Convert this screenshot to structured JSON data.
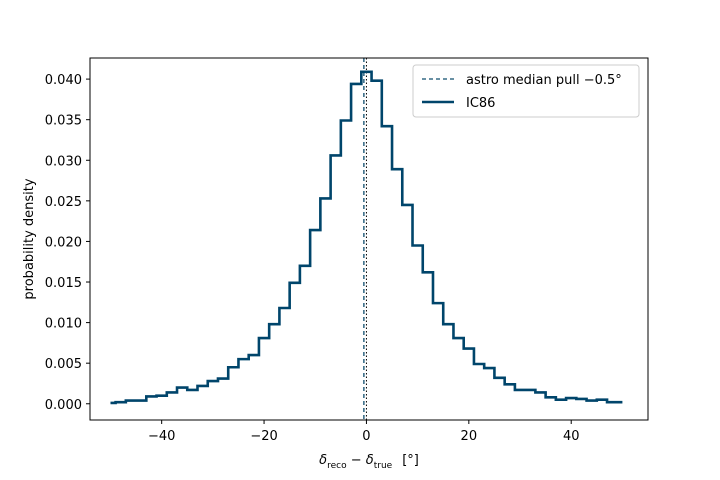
{
  "chart_data": {
    "type": "line",
    "drawstyle": "steps-mid",
    "xlabel_parts": {
      "d1": "δ",
      "sub1": "reco",
      "op": " − ",
      "d2": "δ",
      "sub2": "true",
      "unit": "[°]"
    },
    "ylabel": "probability density",
    "xlim": [
      -54,
      55
    ],
    "ylim": [
      -0.002,
      0.0426
    ],
    "xticks": [
      -40,
      -20,
      0,
      20,
      40
    ],
    "xtick_labels": [
      "−40",
      "−20",
      "0",
      "20",
      "40"
    ],
    "yticks": [
      0.0,
      0.005,
      0.01,
      0.015,
      0.02,
      0.025,
      0.03,
      0.035,
      0.04
    ],
    "ytick_labels": [
      "0.000",
      "0.005",
      "0.010",
      "0.015",
      "0.020",
      "0.025",
      "0.030",
      "0.035",
      "0.040"
    ],
    "grid": false,
    "legend_position": "top-right",
    "median_line": {
      "name": "astro median pull −0.5°",
      "x": -0.5,
      "style": "dashed",
      "color": "#0e4d6e"
    },
    "marker_line": {
      "x": 0.0,
      "style": "dotted",
      "color": "#000000"
    },
    "series": [
      {
        "name": "IC86",
        "color": "#00456b",
        "x": [
          -50,
          -48,
          -46,
          -44,
          -42,
          -40,
          -38,
          -36,
          -34,
          -32,
          -30,
          -28,
          -26,
          -24,
          -22,
          -20,
          -18,
          -16,
          -14,
          -12,
          -10,
          -8,
          -6,
          -4,
          -2,
          0,
          2,
          4,
          6,
          8,
          10,
          12,
          14,
          16,
          18,
          20,
          22,
          24,
          26,
          28,
          30,
          32,
          34,
          36,
          38,
          40,
          42,
          44,
          46,
          48,
          50
        ],
        "y": [
          0.0001,
          0.0002,
          0.0004,
          0.0004,
          0.0009,
          0.001,
          0.0014,
          0.002,
          0.0017,
          0.0022,
          0.0028,
          0.0031,
          0.0045,
          0.0055,
          0.006,
          0.0081,
          0.0098,
          0.0118,
          0.0149,
          0.017,
          0.0214,
          0.0253,
          0.0306,
          0.0349,
          0.0394,
          0.0409,
          0.0398,
          0.0342,
          0.0289,
          0.0245,
          0.0195,
          0.0162,
          0.0124,
          0.0098,
          0.0081,
          0.0068,
          0.0049,
          0.0044,
          0.0032,
          0.0024,
          0.0017,
          0.0017,
          0.0014,
          0.0008,
          0.0005,
          0.0007,
          0.0006,
          0.0004,
          0.0005,
          0.0002,
          0.0002
        ]
      }
    ]
  }
}
